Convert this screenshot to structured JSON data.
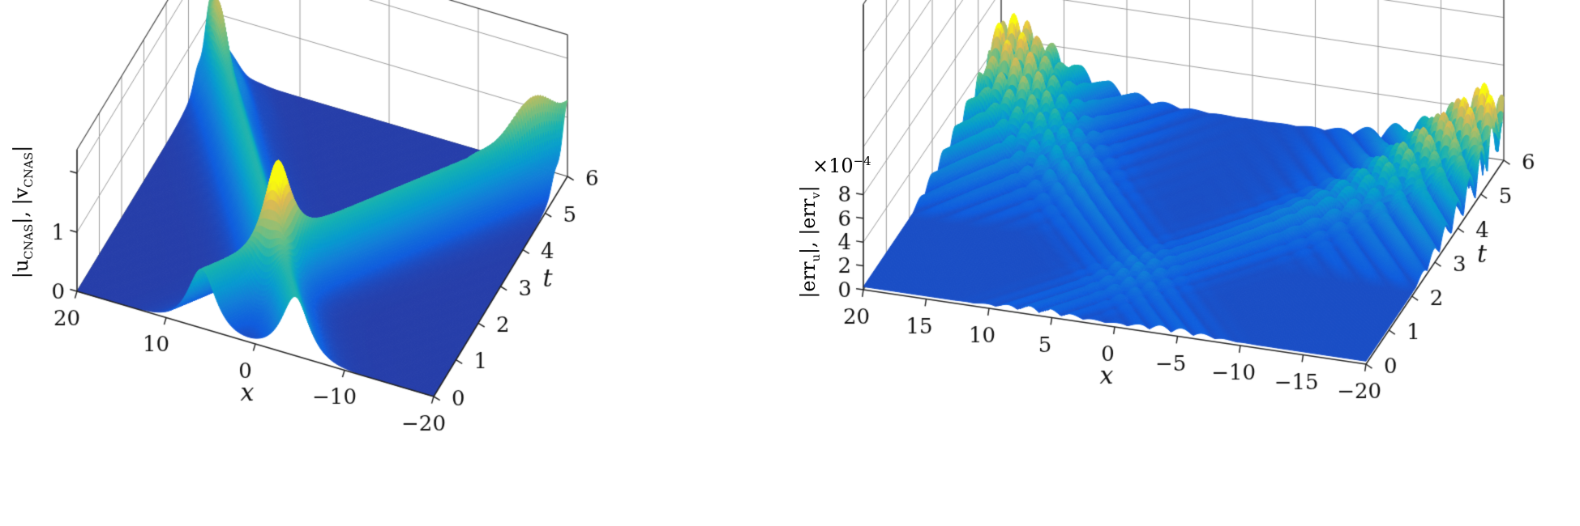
{
  "figure": {
    "background": "#ffffff",
    "colormap": "parula",
    "colormap_stops": [
      "#352a87",
      "#0f5cdd",
      "#127dd8",
      "#079ccf",
      "#15b1b4",
      "#59bd8c",
      "#a5be6b",
      "#e1b952",
      "#f9fb0e"
    ]
  },
  "chart_data": [
    {
      "id": "solution-surface",
      "type": "surface",
      "xlabel": "x",
      "ylabel": "t",
      "zlabel_parts": [
        {
          "t": "|u"
        },
        {
          "sub": "CNAS"
        },
        {
          "t": "|, |v"
        },
        {
          "sub": "CNAS"
        },
        {
          "t": "|"
        }
      ],
      "x_range": [
        20,
        -20
      ],
      "t_range": [
        0,
        6
      ],
      "z_range": [
        0,
        2.4
      ],
      "x_tick_values": [
        20,
        10,
        0,
        -10,
        -20
      ],
      "x_tick_labels": [
        "20",
        "10",
        "0",
        "−10",
        "−20"
      ],
      "t_tick_values": [
        0,
        1,
        2,
        3,
        4,
        5,
        6
      ],
      "t_tick_labels": [
        "0",
        "1",
        "2",
        "3",
        "4",
        "5",
        "6"
      ],
      "z_tick_values": [
        0,
        1
      ],
      "z_tick_labels": [
        "0",
        "1"
      ],
      "z_tick_marks": [
        0,
        1,
        2
      ],
      "wall_z_grid": [
        1,
        2
      ],
      "color_max": 2.0,
      "grid_on": true,
      "surface_model": {
        "type": "two_soliton",
        "solitons": [
          {
            "amp": 1.0,
            "width": 1.35,
            "x0": 6.0,
            "v": -4.3333
          },
          {
            "amp": 1.0,
            "width": 1.35,
            "x0": -4.5,
            "v": 4.0833
          }
        ],
        "boundary_ripples": {
          "start": 13,
          "end": 20,
          "gain": 0.95,
          "kx": 2.1,
          "kt": 5.0
        },
        "collision_boost": {
          "gain": 0.3,
          "x": 0.6,
          "t": 1.25,
          "sx": 2.2,
          "st": 0.5
        }
      }
    },
    {
      "id": "error-surface",
      "type": "surface",
      "xlabel": "x",
      "ylabel": "t",
      "zlabel_parts": [
        {
          "t": "|err"
        },
        {
          "sub": "u"
        },
        {
          "t": "|, |err"
        },
        {
          "sub": "v"
        },
        {
          "t": "|"
        }
      ],
      "z_multiplier_parts": [
        {
          "t": "×10"
        },
        {
          "sup": "−4"
        }
      ],
      "x_range": [
        20,
        -20
      ],
      "t_range": [
        0,
        6
      ],
      "z_range": [
        0,
        24
      ],
      "x_tick_values": [
        20,
        15,
        10,
        5,
        0,
        -5,
        -10,
        -15,
        -20
      ],
      "x_tick_labels": [
        "20",
        "15",
        "10",
        "5",
        "0",
        "−5",
        "−10",
        "−15",
        "−20"
      ],
      "t_tick_values": [
        0,
        1,
        2,
        3,
        4,
        5,
        6
      ],
      "t_tick_labels": [
        "0",
        "1",
        "2",
        "3",
        "4",
        "5",
        "6"
      ],
      "z_tick_values": [
        0,
        2,
        4,
        6,
        8
      ],
      "z_tick_labels": [
        "0",
        "2",
        "4",
        "6",
        "8"
      ],
      "z_tick_marks": [
        0,
        2,
        4,
        6,
        8
      ],
      "wall_z_grid": [
        4,
        8,
        12,
        16,
        20
      ],
      "color_max": 6.0,
      "grid_on": true,
      "surface_model": {
        "type": "error_field",
        "base": 0.25,
        "wake_paths": [
          {
            "x0": 6.0,
            "v": -4.3333,
            "width": 3.5,
            "kx": 1.8,
            "kt": 0.6,
            "a0": 0.5,
            "a1": 2.2
          },
          {
            "x0": -4.5,
            "v": 4.0833,
            "width": 3.5,
            "kx": 1.8,
            "kt": -0.6,
            "a0": 0.5,
            "a1": 2.2
          }
        ],
        "edge_fans": [
          {
            "x": 20,
            "width": 8.5,
            "kx": 1.4,
            "kt": 6.0,
            "t0": 2.0,
            "gain": 4.2
          },
          {
            "x": -20,
            "width": 8.5,
            "kx": 1.4,
            "kt": -6.0,
            "t0": 2.0,
            "gain": 4.2
          }
        ]
      }
    }
  ]
}
